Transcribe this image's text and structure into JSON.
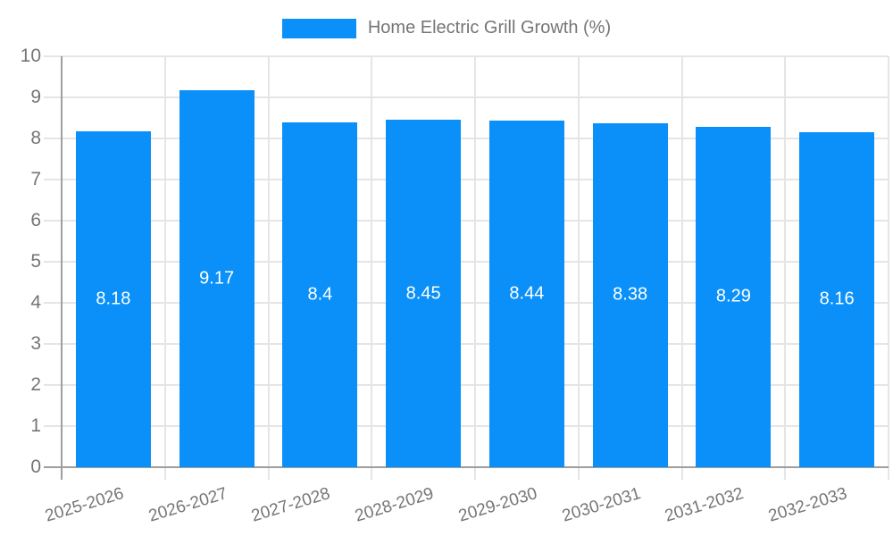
{
  "chart_data": {
    "type": "bar",
    "legend_label": "Home Electric Grill Growth (%)",
    "legend_position": "top",
    "categories": [
      "2025-2026",
      "2026-2027",
      "2027-2028",
      "2028-2029",
      "2029-2030",
      "2030-2031",
      "2031-2032",
      "2032-2033"
    ],
    "values": [
      8.18,
      9.17,
      8.4,
      8.45,
      8.44,
      8.38,
      8.29,
      8.16
    ],
    "value_labels": [
      "8.18",
      "9.17",
      "8.4",
      "8.45",
      "8.44",
      "8.38",
      "8.29",
      "8.16"
    ],
    "xlabel": "",
    "ylabel": "",
    "ylim": [
      0,
      10
    ],
    "y_ticks": [
      0,
      1,
      2,
      3,
      4,
      5,
      6,
      7,
      8,
      9,
      10
    ],
    "grid": true,
    "colors": {
      "bar": "#0a90f8",
      "value_label": "#ffffff",
      "axis_text": "#757575",
      "grid_line": "#e5e5e5",
      "axis_line": "#9e9e9e",
      "background": "#ffffff"
    }
  }
}
